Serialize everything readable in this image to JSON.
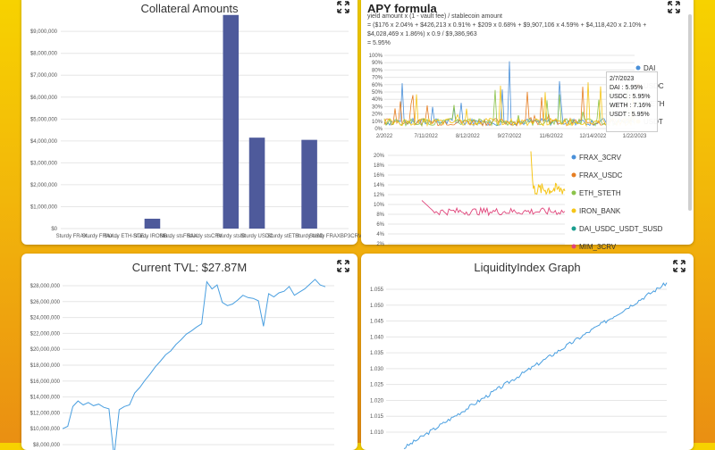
{
  "collateral": {
    "title": "Collateral Amounts",
    "chart_data": {
      "type": "bar",
      "title": "Collateral Amounts",
      "y_ticks": [
        "$0",
        "$1,000,000",
        "$2,000,000",
        "$3,000,000",
        "$4,000,000",
        "$5,000,000",
        "$6,000,000",
        "$7,000,000",
        "$8,000,000",
        "$9,000,000"
      ],
      "ylim": [
        0,
        9700000
      ],
      "categories": [
        "Sturdy FRAX_3CRV",
        "Sturdy FRAX_USDC",
        "Sturdy ETH_STETH",
        "Sturdy IRON_BANK",
        "Sturdy stsFRAX",
        "Sturdy stsCRV",
        "Sturdy stsIB",
        "Sturdy USDC",
        "Sturdy stETH",
        "Sturdy USD",
        "Sturdy FRAXBP3CRV"
      ],
      "x_labels": [
        "Sturdy FRAX...",
        "Sturdy FRAX...",
        "Sturdy ETH-STE...",
        "Sturdy IRONB...",
        "Sturdy stsFRAX",
        "Sturdy stsCRV",
        "Sturdy stsIB",
        "Sturdy USDC",
        "Sturdy stETH",
        "Sturdy USD",
        "Sturdy FRAXBP3CRV"
      ],
      "values": [
        0,
        0,
        0,
        450000,
        0,
        0,
        9750000,
        4150000,
        0,
        4050000,
        0
      ],
      "color": "#4e5a9b"
    }
  },
  "apy": {
    "title": "APY formula",
    "formula_lines": [
      "yield amount x (1 - vault fee) / stablecoin amount",
      "= ($176 x 2.04% + $426,213 x 0.91% + $209 x 0.68% + $9,907,106 x 4.59% + $4,118,420 x 2.10% +",
      "$4,028,469 x 1.86%) x 0.9 / $9,386,963",
      "= 5.95%"
    ],
    "chart_data": {
      "type": "line",
      "y_ticks_top": [
        "0%",
        "10%",
        "20%",
        "30%",
        "40%",
        "50%",
        "60%",
        "70%",
        "80%",
        "90%",
        "100%"
      ],
      "x_ticks_top": [
        "2/2022",
        "7/11/2022",
        "8/12/2022",
        "9/27/2022",
        "11/6/2022",
        "12/14/2022",
        "1/22/2023"
      ],
      "y_ticks_bottom": [
        "2%",
        "4%",
        "6%",
        "8%",
        "10%",
        "12%",
        "14%",
        "16%",
        "18%",
        "20%"
      ],
      "series_top": [
        {
          "name": "DAI",
          "color": "#4a90d9"
        },
        {
          "name": "USDC",
          "color": "#e67e22"
        },
        {
          "name": "WETH",
          "color": "#8bc34a"
        },
        {
          "name": "USDT",
          "color": "#f5c518"
        }
      ],
      "series_bottom": [
        {
          "name": "FRAX_3CRV",
          "color": "#4a90d9"
        },
        {
          "name": "FRAX_USDC",
          "color": "#e67e22"
        },
        {
          "name": "ETH_STETH",
          "color": "#8bc34a"
        },
        {
          "name": "IRON_BANK",
          "color": "#f5c518"
        },
        {
          "name": "DAI_USDC_USDT_SUSD",
          "color": "#1a9e8f"
        },
        {
          "name": "MIM_3CRV",
          "color": "#e0457b"
        }
      ]
    },
    "tooltip": {
      "date": "2/7/2023",
      "dai": "DAI : 5.95%",
      "usdc": "USDC : 5.95%",
      "weth": "WETH : 7.16%",
      "usdt": "USDT : 5.95%"
    }
  },
  "tvl": {
    "title": "Current TVL: $27.87M",
    "chart_data": {
      "type": "line",
      "title": "Current TVL: $27.87M",
      "y_ticks": [
        "$8,000,000",
        "$10,000,000",
        "$12,000,000",
        "$14,000,000",
        "$16,000,000",
        "$18,000,000",
        "$20,000,000",
        "$22,000,000",
        "$24,000,000",
        "$26,000,000",
        "$28,000,000"
      ],
      "color": "#4a9fe0"
    }
  },
  "liquidity": {
    "title": "LiquidityIndex Graph",
    "chart_data": {
      "type": "line",
      "title": "LiquidityIndex Graph",
      "y_ticks": [
        "1.010",
        "1.015",
        "1.020",
        "1.025",
        "1.030",
        "1.035",
        "1.040",
        "1.045",
        "1.050",
        "1.055"
      ],
      "color": "#4a9fe0"
    }
  },
  "icons": {
    "expand": "expand-icon"
  }
}
